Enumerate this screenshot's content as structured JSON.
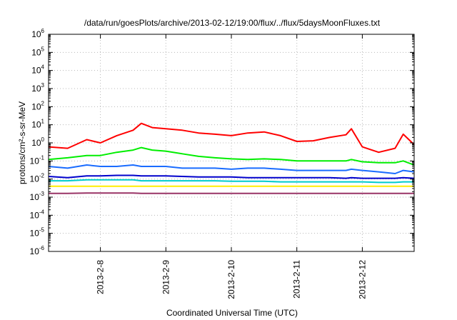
{
  "chart_data": {
    "type": "line",
    "title": "/data/run/goesPlots/archive/2013-02-12/19:00/flux/../flux/5daysMoonFluxes.txt",
    "xlabel": "Coordinated Universal Time (UTC)",
    "ylabel": "protons/cm²-s-sr-MeV",
    "yscale": "log",
    "ylim": [
      1e-06,
      1000000.0
    ],
    "xlim": [
      "2013-02-07 05:00",
      "2013-02-12 19:00"
    ],
    "grid": true,
    "yticks": [
      {
        "base": "10",
        "exp": "-6"
      },
      {
        "base": "10",
        "exp": "-5"
      },
      {
        "base": "10",
        "exp": "-4"
      },
      {
        "base": "10",
        "exp": "-3"
      },
      {
        "base": "10",
        "exp": "-2"
      },
      {
        "base": "10",
        "exp": "-1"
      },
      {
        "base": "10",
        "exp": "0"
      },
      {
        "base": "10",
        "exp": "1"
      },
      {
        "base": "10",
        "exp": "2"
      },
      {
        "base": "10",
        "exp": "3"
      },
      {
        "base": "10",
        "exp": "4"
      },
      {
        "base": "10",
        "exp": "5"
      },
      {
        "base": "10",
        "exp": "6"
      }
    ],
    "xticks": [
      {
        "label": "2013-2-8",
        "value": "2013-02-08 00:00"
      },
      {
        "label": "2013-2-9",
        "value": "2013-02-09 00:00"
      },
      {
        "label": "2013-2-10",
        "value": "2013-02-10 00:00"
      },
      {
        "label": "2013-2-11",
        "value": "2013-02-11 00:00"
      },
      {
        "label": "2013-2-12",
        "value": "2013-02-12 00:00"
      }
    ],
    "x": [
      "2013-02-07 05:00",
      "2013-02-07 12:00",
      "2013-02-07 19:00",
      "2013-02-08 00:00",
      "2013-02-08 06:00",
      "2013-02-08 12:00",
      "2013-02-08 15:00",
      "2013-02-08 19:00",
      "2013-02-09 00:00",
      "2013-02-09 06:00",
      "2013-02-09 12:00",
      "2013-02-09 18:00",
      "2013-02-10 00:00",
      "2013-02-10 06:00",
      "2013-02-10 12:00",
      "2013-02-10 18:00",
      "2013-02-11 00:00",
      "2013-02-11 06:00",
      "2013-02-11 12:00",
      "2013-02-11 18:00",
      "2013-02-11 20:00",
      "2013-02-12 00:00",
      "2013-02-12 06:00",
      "2013-02-12 12:00",
      "2013-02-12 15:00",
      "2013-02-12 19:00"
    ],
    "series": [
      {
        "color": "#ff0000",
        "values": [
          0.6,
          0.5,
          1.5,
          1.0,
          2.5,
          5.0,
          12,
          7,
          6,
          5,
          3.5,
          3,
          2.5,
          3.5,
          4,
          2.5,
          1.2,
          1.3,
          2.0,
          2.8,
          6,
          0.6,
          0.3,
          0.5,
          3.0,
          0.8
        ]
      },
      {
        "color": "#00ee00",
        "values": [
          0.12,
          0.15,
          0.2,
          0.2,
          0.3,
          0.4,
          0.55,
          0.4,
          0.35,
          0.25,
          0.18,
          0.15,
          0.13,
          0.12,
          0.13,
          0.12,
          0.1,
          0.1,
          0.1,
          0.1,
          0.12,
          0.09,
          0.08,
          0.08,
          0.1,
          0.06
        ]
      },
      {
        "color": "#1a6cff",
        "values": [
          0.05,
          0.04,
          0.06,
          0.05,
          0.05,
          0.06,
          0.05,
          0.05,
          0.05,
          0.04,
          0.04,
          0.04,
          0.035,
          0.04,
          0.04,
          0.035,
          0.03,
          0.03,
          0.03,
          0.03,
          0.035,
          0.03,
          0.025,
          0.02,
          0.03,
          0.025
        ]
      },
      {
        "color": "#0000cc",
        "values": [
          0.014,
          0.012,
          0.015,
          0.015,
          0.016,
          0.016,
          0.015,
          0.015,
          0.015,
          0.014,
          0.013,
          0.013,
          0.013,
          0.012,
          0.012,
          0.012,
          0.012,
          0.012,
          0.012,
          0.011,
          0.012,
          0.011,
          0.011,
          0.011,
          0.012,
          0.011
        ]
      },
      {
        "color": "#00cccc",
        "values": [
          0.008,
          0.008,
          0.009,
          0.009,
          0.009,
          0.009,
          0.008,
          0.008,
          0.008,
          0.008,
          0.008,
          0.008,
          0.0075,
          0.0075,
          0.0075,
          0.007,
          0.007,
          0.007,
          0.007,
          0.007,
          0.007,
          0.007,
          0.0065,
          0.0065,
          0.007,
          0.007
        ]
      },
      {
        "color": "#ffee00",
        "values": [
          0.004,
          0.004,
          0.004,
          0.004,
          0.004,
          0.004,
          0.004,
          0.004,
          0.004,
          0.004,
          0.004,
          0.004,
          0.004,
          0.004,
          0.004,
          0.004,
          0.004,
          0.004,
          0.004,
          0.004,
          0.004,
          0.004,
          0.004,
          0.004,
          0.004,
          0.004
        ]
      },
      {
        "color": "#993366",
        "values": [
          0.0016,
          0.0016,
          0.0017,
          0.0017,
          0.0017,
          0.0017,
          0.0016,
          0.0016,
          0.0016,
          0.0016,
          0.0016,
          0.0016,
          0.0016,
          0.0016,
          0.0016,
          0.0016,
          0.0016,
          0.0016,
          0.0016,
          0.0016,
          0.0016,
          0.0016,
          0.0016,
          0.0016,
          0.0016,
          0.0016
        ]
      }
    ]
  }
}
